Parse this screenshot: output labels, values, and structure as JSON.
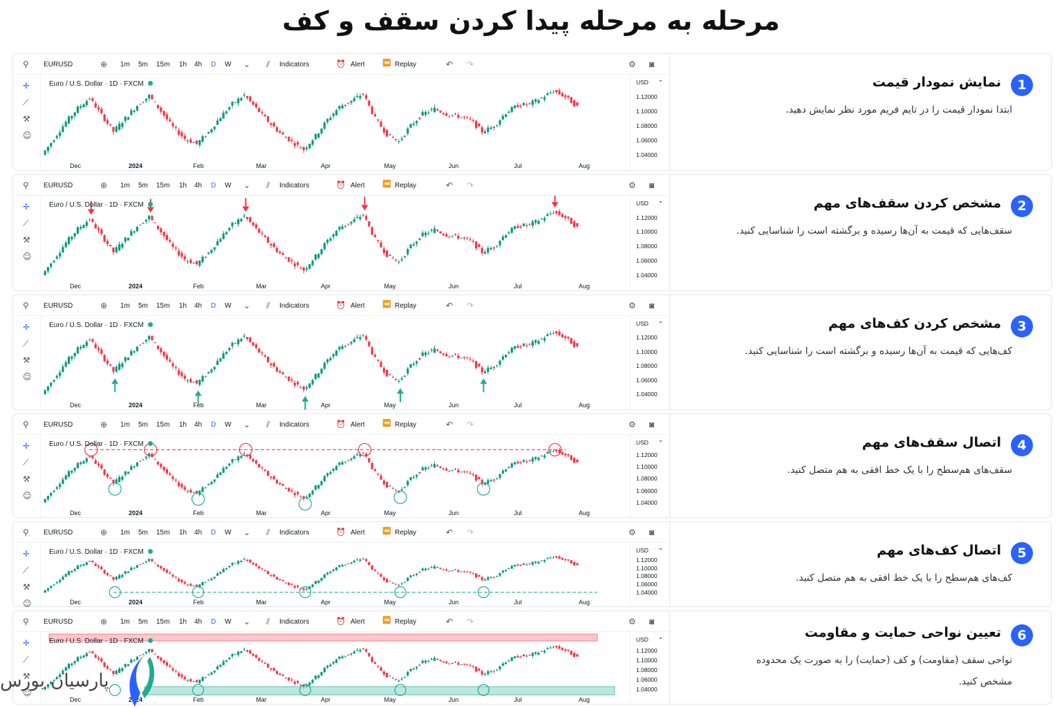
{
  "page": {
    "title": "مرحله به مرحله پیدا کردن سقف و کف"
  },
  "toolbar": {
    "symbol": "EURUSD",
    "intervals": [
      "1m",
      "5m",
      "15m",
      "1h",
      "4h",
      "D",
      "W"
    ],
    "active_interval": "D",
    "indicators_label": "Indicators",
    "alert_label": "Alert",
    "replay_label": "Replay"
  },
  "chart": {
    "legend": "Euro / U.S. Dollar · 1D · FXCM",
    "currency": "USD",
    "price_ticks": [
      "1.12000",
      "1.10000",
      "1.08000",
      "1.06000",
      "1.04000"
    ],
    "x_ticks": [
      "Dec",
      "2024",
      "Feb",
      "Mar",
      "Apr",
      "May",
      "Jun",
      "Jul",
      "Aug"
    ],
    "colors": {
      "up": "#089981",
      "down": "#f23645",
      "accent": "#2962ff",
      "resistance": "#f23645",
      "support": "#22ab94"
    }
  },
  "chart_data": {
    "type": "candlestick",
    "x_ticks": [
      "Dec",
      "2024",
      "Feb",
      "Mar",
      "Apr",
      "May",
      "Jun",
      "Jul",
      "Aug"
    ],
    "y_ticks": [
      1.12,
      1.1,
      1.08,
      1.06,
      1.04
    ],
    "currency": "USD",
    "close_path": [
      1.04,
      1.062,
      1.085,
      1.104,
      1.118,
      1.095,
      1.072,
      1.09,
      1.108,
      1.121,
      1.1,
      1.078,
      1.062,
      1.055,
      1.071,
      1.092,
      1.11,
      1.122,
      1.104,
      1.086,
      1.07,
      1.058,
      1.047,
      1.066,
      1.088,
      1.106,
      1.114,
      1.124,
      1.09,
      1.068,
      1.058,
      1.08,
      1.096,
      1.103,
      1.096,
      1.093,
      1.088,
      1.072,
      1.079,
      1.098,
      1.108,
      1.11,
      1.118,
      1.128,
      1.12,
      1.106
    ]
  },
  "steps": [
    {
      "number": "1",
      "heading": "نمایش نمودار قیمت",
      "description": "ابتدا نمودار قیمت را در تایم فریم مورد نظر نمایش دهید."
    },
    {
      "number": "2",
      "heading": "مشخص کردن سقف‌های مهم",
      "description": "سقف‌هایی که قیمت به آن‌ها رسیده و برگشته است را شناسایی کنید."
    },
    {
      "number": "3",
      "heading": "مشخص کردن کف‌های مهم",
      "description": "کف‌هایی که قیمت به آن‌ها رسیده و برگشته است را شناسایی کنید."
    },
    {
      "number": "4",
      "heading": "اتصال سقف‌های مهم",
      "description": "سقف‌های هم‌سطح را با یک خط افقی به هم متصل کنید."
    },
    {
      "number": "5",
      "heading": "اتصال کف‌های مهم",
      "description": "کف‌های هم‌سطح را با یک خط افقی به هم متصل کنید."
    },
    {
      "number": "6",
      "heading": "تعیین نواحی حمایت و مقاومت",
      "description": "نواحی سقف (مقاومت) و کف (حمایت) را به صورت یک محدوده مشخص کنید."
    }
  ],
  "brand": {
    "name": "پارسیان بورس"
  }
}
